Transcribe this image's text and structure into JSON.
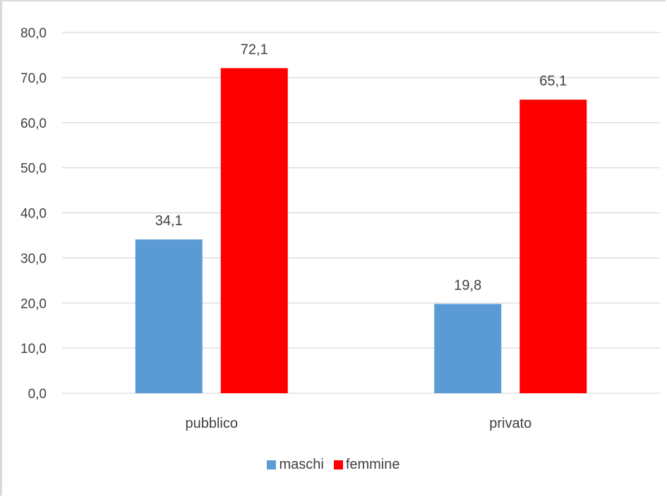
{
  "chart_data": {
    "type": "bar",
    "categories": [
      "pubblico",
      "privato"
    ],
    "series": [
      {
        "name": "maschi",
        "values": [
          34.1,
          19.8
        ],
        "color": "#5b9bd5"
      },
      {
        "name": "femmine",
        "values": [
          72.1,
          65.1
        ],
        "color": "#ff0000"
      }
    ],
    "value_labels": [
      [
        "34,1",
        "19,8"
      ],
      [
        "72,1",
        "65,1"
      ]
    ],
    "yticks": [
      "0,0",
      "10,0",
      "20,0",
      "30,0",
      "40,0",
      "50,0",
      "60,0",
      "70,0",
      "80,0"
    ],
    "ylim": [
      0,
      80
    ],
    "grid": true,
    "legend_position": "bottom",
    "title": "",
    "xlabel": "",
    "ylabel": ""
  }
}
